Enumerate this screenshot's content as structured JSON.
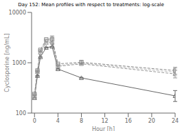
{
  "chart_data": {
    "type": "line",
    "title": "Day 152: Mean profiles with respect to treatments: log-scale",
    "x_label": "Hour [h]",
    "y_label": "Cyclosporine [ng/mL]",
    "x": [
      0,
      0.5,
      1,
      2,
      3,
      4,
      8,
      24
    ],
    "xlim": [
      -0.5,
      24
    ],
    "xticks": [
      0,
      4,
      8,
      12,
      16,
      20,
      24
    ],
    "ylim": [
      100,
      10000
    ],
    "yticks": [
      100,
      1000,
      10000
    ],
    "log": "y",
    "grid": false,
    "series": [
      {
        "color": "#666666",
        "marker": "triangle",
        "line_style": "solid",
        "values": [
          200,
          550,
          1300,
          2000,
          2100,
          750,
          500,
          220
        ],
        "error_lo": [
          0,
          0,
          0,
          0,
          0,
          0,
          0,
          50
        ],
        "error_hi": [
          0,
          0,
          0,
          0,
          0,
          0,
          0,
          60
        ]
      },
      {
        "color": "#999999",
        "marker": "triangle",
        "line_style": "dashed",
        "values": [
          220,
          650,
          1600,
          2500,
          2550,
          850,
          950,
          600
        ],
        "error_lo": [
          0,
          0,
          0,
          0,
          500,
          0,
          0,
          100
        ],
        "error_hi": [
          0,
          0,
          0,
          0,
          500,
          0,
          0,
          100
        ]
      },
      {
        "color": "#bbbbbb",
        "marker": "circle",
        "line_style": "dashed",
        "values": [
          230,
          680,
          1700,
          2700,
          2700,
          880,
          980,
          650
        ],
        "error_lo": [
          0,
          0,
          0,
          0,
          400,
          0,
          0,
          100
        ],
        "error_hi": [
          0,
          0,
          0,
          0,
          400,
          0,
          0,
          100
        ]
      },
      {
        "color": "#888888",
        "marker": "square",
        "line_style": "dashed",
        "values": [
          240,
          700,
          1800,
          2900,
          2950,
          950,
          1020,
          700
        ],
        "error_lo": [
          0,
          0,
          0,
          0,
          450,
          0,
          100,
          110
        ],
        "error_hi": [
          0,
          0,
          0,
          0,
          450,
          0,
          100,
          110
        ]
      }
    ]
  }
}
